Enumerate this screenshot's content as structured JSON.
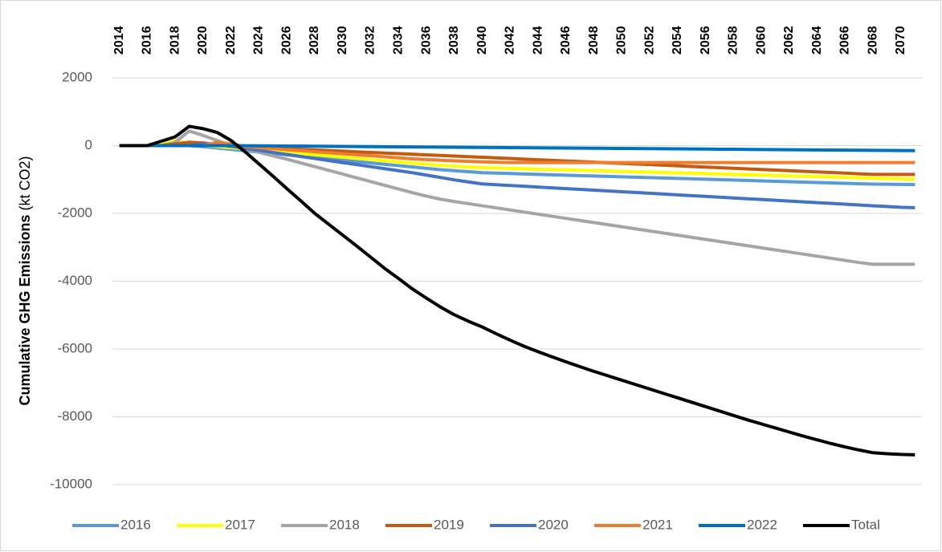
{
  "chart_data": {
    "type": "line",
    "y_label": [
      "Cumulative GHG Emissions",
      "(kt CO2)"
    ],
    "categories": [
      "2014",
      null,
      "2016",
      null,
      "2018",
      null,
      "2020",
      null,
      "2022",
      null,
      "2024",
      null,
      "2026",
      null,
      "2028",
      null,
      "2030",
      null,
      "2032",
      null,
      "2034",
      null,
      "2036",
      null,
      "2038",
      null,
      "2040",
      null,
      "2042",
      null,
      "2044",
      null,
      "2046",
      null,
      "2048",
      null,
      "2050",
      null,
      "2052",
      null,
      "2054",
      null,
      "2056",
      null,
      "2058",
      null,
      "2060",
      null,
      "2062",
      null,
      "2064",
      null,
      "2066",
      null,
      "2068",
      null,
      "2070",
      null
    ],
    "ylim": [
      -10000,
      2000
    ],
    "yticks": [
      2000,
      0,
      -2000,
      -4000,
      -6000,
      -8000,
      -10000
    ],
    "grid": true,
    "legend": "bottom",
    "series": [
      {
        "name": "2016",
        "color": "#5b9bd5",
        "values": [
          0,
          0,
          0,
          0,
          0,
          0,
          -30,
          -70,
          -110,
          -150,
          -190,
          -230,
          -270,
          -310,
          -350,
          -390,
          -430,
          -470,
          -510,
          -550,
          -590,
          -630,
          -670,
          -710,
          -740,
          -770,
          -800,
          -812,
          -824,
          -836,
          -848,
          -860,
          -872,
          -884,
          -896,
          -908,
          -920,
          -932,
          -944,
          -956,
          -968,
          -980,
          -992,
          -1004,
          -1016,
          -1028,
          -1040,
          -1052,
          -1064,
          -1076,
          -1088,
          -1100,
          -1112,
          -1124,
          -1136,
          -1140,
          -1145,
          -1150
        ]
      },
      {
        "name": "2017",
        "color": "#ffff00",
        "values": [
          0,
          0,
          0,
          100,
          150,
          50,
          0,
          -30,
          -60,
          -95,
          -130,
          -165,
          -200,
          -235,
          -270,
          -305,
          -340,
          -375,
          -410,
          -445,
          -480,
          -515,
          -550,
          -580,
          -605,
          -630,
          -650,
          -661,
          -672,
          -683,
          -694,
          -705,
          -716,
          -727,
          -738,
          -749,
          -760,
          -771,
          -782,
          -793,
          -804,
          -815,
          -826,
          -837,
          -848,
          -859,
          -870,
          -881,
          -892,
          -903,
          -914,
          -925,
          -936,
          -947,
          -958,
          -969,
          -980,
          -990
        ]
      },
      {
        "name": "2018",
        "color": "#a5a5a5",
        "values": [
          0,
          0,
          0,
          0,
          100,
          430,
          300,
          150,
          0,
          -100,
          -200,
          -300,
          -400,
          -510,
          -620,
          -730,
          -840,
          -950,
          -1060,
          -1170,
          -1280,
          -1390,
          -1490,
          -1580,
          -1650,
          -1712,
          -1774,
          -1836,
          -1898,
          -1960,
          -2022,
          -2084,
          -2146,
          -2208,
          -2270,
          -2332,
          -2394,
          -2456,
          -2518,
          -2580,
          -2642,
          -2704,
          -2766,
          -2828,
          -2890,
          -2952,
          -3014,
          -3076,
          -3138,
          -3200,
          -3262,
          -3324,
          -3386,
          -3448,
          -3500,
          -3500,
          -3500,
          -3500
        ]
      },
      {
        "name": "2019",
        "color": "#c55a11",
        "values": [
          0,
          0,
          0,
          0,
          50,
          100,
          80,
          30,
          -20,
          -38,
          -56,
          -74,
          -92,
          -110,
          -128,
          -146,
          -164,
          -182,
          -200,
          -218,
          -236,
          -254,
          -272,
          -290,
          -308,
          -326,
          -344,
          -362,
          -380,
          -398,
          -416,
          -434,
          -452,
          -470,
          -488,
          -506,
          -524,
          -542,
          -560,
          -578,
          -596,
          -614,
          -632,
          -650,
          -668,
          -686,
          -704,
          -722,
          -740,
          -758,
          -776,
          -794,
          -812,
          -830,
          -848,
          -850,
          -850,
          -850
        ]
      },
      {
        "name": "2020",
        "color": "#4472c4",
        "values": [
          0,
          0,
          0,
          0,
          0,
          0,
          50,
          30,
          -20,
          -80,
          -140,
          -200,
          -260,
          -320,
          -380,
          -440,
          -500,
          -560,
          -620,
          -680,
          -740,
          -800,
          -870,
          -940,
          -1010,
          -1070,
          -1130,
          -1153,
          -1176,
          -1199,
          -1222,
          -1245,
          -1268,
          -1291,
          -1314,
          -1337,
          -1360,
          -1383,
          -1406,
          -1429,
          -1452,
          -1475,
          -1498,
          -1521,
          -1544,
          -1567,
          -1590,
          -1613,
          -1636,
          -1659,
          -1682,
          -1705,
          -1728,
          -1751,
          -1774,
          -1797,
          -1820,
          -1830
        ]
      },
      {
        "name": "2021",
        "color": "#ed7d31",
        "values": [
          0,
          0,
          0,
          0,
          0,
          0,
          0,
          100,
          50,
          -30,
          -60,
          -90,
          -120,
          -150,
          -180,
          -210,
          -240,
          -270,
          -300,
          -330,
          -360,
          -390,
          -410,
          -430,
          -450,
          -465,
          -480,
          -490,
          -500,
          -500,
          -500,
          -500,
          -500,
          -500,
          -500,
          -500,
          -500,
          -500,
          -500,
          -500,
          -500,
          -500,
          -500,
          -500,
          -500,
          -500,
          -500,
          -500,
          -500,
          -500,
          -500,
          -500,
          -500,
          -500,
          -500,
          -500,
          -500,
          -500
        ]
      },
      {
        "name": "2022",
        "color": "#0070c0",
        "values": [
          0,
          0,
          0,
          0,
          0,
          0,
          0,
          0,
          0,
          -3,
          -6,
          -9,
          -12,
          -15,
          -18,
          -21,
          -24,
          -27,
          -30,
          -33,
          -36,
          -39,
          -42,
          -45,
          -48,
          -51,
          -54,
          -57,
          -60,
          -63,
          -66,
          -69,
          -72,
          -75,
          -78,
          -81,
          -84,
          -87,
          -90,
          -93,
          -96,
          -99,
          -102,
          -105,
          -108,
          -111,
          -114,
          -117,
          -120,
          -123,
          -126,
          -129,
          -132,
          -135,
          -138,
          -141,
          -144,
          -147
        ]
      },
      {
        "name": "Total",
        "color": "#000000",
        "values": [
          0,
          0,
          0,
          130,
          260,
          570,
          500,
          390,
          150,
          -180,
          -540,
          -900,
          -1270,
          -1630,
          -2000,
          -2320,
          -2640,
          -2960,
          -3290,
          -3620,
          -3920,
          -4230,
          -4500,
          -4760,
          -4990,
          -5180,
          -5350,
          -5550,
          -5740,
          -5920,
          -6080,
          -6230,
          -6380,
          -6520,
          -6660,
          -6790,
          -6920,
          -7050,
          -7180,
          -7310,
          -7440,
          -7570,
          -7700,
          -7830,
          -7960,
          -8090,
          -8210,
          -8330,
          -8450,
          -8570,
          -8680,
          -8790,
          -8890,
          -8980,
          -9060,
          -9090,
          -9110,
          -9120
        ]
      }
    ]
  }
}
